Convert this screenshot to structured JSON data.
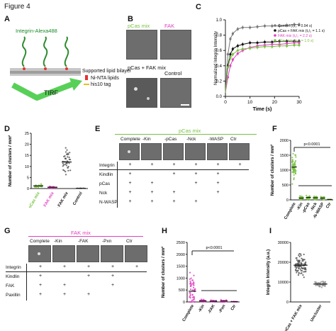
{
  "figure_title": "Figure 4",
  "colors": {
    "green": "#7ac143",
    "magenta": "#e040c0",
    "gray": "#777777",
    "black": "#111111"
  },
  "panelA": {
    "letter": "A",
    "integrin_label": "Integrin-Alexa488",
    "bilayer": "Supported lipid bilayer",
    "nta": "Ni-NTA lipids",
    "his": "his10 tag",
    "tirf": "TIRF"
  },
  "panelB": {
    "letter": "B",
    "img1": "pCas mix",
    "img2": "FAK",
    "img3": "pCas + FAK mix",
    "img4": "Control"
  },
  "panelC": {
    "letter": "C",
    "ylabel": "Normalized Integrin Intensity",
    "xlabel": "Time (s)",
    "legend": [
      "Control (t₁/₂ = 0.94 s)",
      "pCas + FAK mix (t₁/₂ = 1.1 s)",
      "FAK mix (t₁/₂ = 2.2 s)",
      "pCas mix (t₁/₂ = 1.0 s)"
    ],
    "xticks": [
      "0",
      "10",
      "20",
      "30"
    ],
    "yticks": [
      "0.0",
      "0.2",
      "0.4",
      "0.6",
      "0.8",
      "1.0"
    ]
  },
  "panelD": {
    "letter": "D",
    "ylabel": "Number of clusters / mm²",
    "yticks": [
      "0",
      "5",
      "10",
      "15",
      "20",
      "25"
    ],
    "categories": [
      "pCas mix",
      "FAK mix",
      "pCas + FAK mix",
      "Control"
    ]
  },
  "panelE": {
    "letter": "E",
    "title": "pCas mix",
    "cols": [
      "Complete",
      "-Kin",
      "-pCas",
      "-Nck",
      "-WASP",
      "Ctr"
    ],
    "rows": [
      "Integrin",
      "Kindlin",
      "pCas",
      "Nck",
      "N-WASP"
    ],
    "cells": [
      [
        "+",
        "+",
        "+",
        "+",
        "+",
        "+"
      ],
      [
        "+",
        "",
        "+",
        "+",
        "+",
        ""
      ],
      [
        "+",
        "+",
        "",
        "+",
        "+",
        ""
      ],
      [
        "+",
        "+",
        "+",
        "",
        "+",
        ""
      ],
      [
        "+",
        "+",
        "+",
        "+",
        "",
        ""
      ]
    ]
  },
  "panelF": {
    "letter": "F",
    "ylabel": "Number of clusters / mm²",
    "pvalue": "p<0.0001",
    "yticks": [
      "0",
      "500",
      "1000",
      "1500",
      "2000"
    ],
    "categories": [
      "Complete",
      "-Kin",
      "-pCas",
      "-Nck",
      "-N-WASP",
      "Ctr"
    ]
  },
  "panelG": {
    "letter": "G",
    "title": "FAK mix",
    "cols": [
      "Complete",
      "-Kin",
      "-FAK",
      "-Pxn",
      "Ctr"
    ],
    "rows": [
      "Integrin",
      "Kindlin",
      "FAK",
      "Paxillin"
    ],
    "cells": [
      [
        "+",
        "+",
        "+",
        "+",
        "+"
      ],
      [
        "+",
        "",
        "+",
        "+",
        ""
      ],
      [
        "+",
        "+",
        "",
        "+",
        ""
      ],
      [
        "+",
        "+",
        "+",
        "",
        ""
      ]
    ]
  },
  "panelH": {
    "letter": "H",
    "ylabel": "Number of clusters / mm²",
    "pvalue": "p<0.0001",
    "yticks": [
      "0",
      "500",
      "1000",
      "1500",
      "2000",
      "2500"
    ],
    "categories": [
      "Complete",
      "-Kin",
      "-FAK",
      "-Pxn",
      "Ctr"
    ]
  },
  "panelI": {
    "letter": "I",
    "ylabel": "Integrin Intensity (a.u.)",
    "yticks": [
      "0",
      "10000",
      "20000",
      "30000"
    ],
    "categories": [
      "pCas + FAK mix",
      "Uncluster"
    ]
  },
  "chart_data": [
    {
      "type": "line",
      "panel": "C",
      "xlabel": "Time (s)",
      "ylabel": "Normalized Integrin Intensity",
      "xlim": [
        0,
        30
      ],
      "ylim": [
        0,
        1.0
      ],
      "series": [
        {
          "name": "Control (t₁/₂ = 0.94 s)",
          "color": "#777777",
          "x": [
            0,
            1,
            2,
            3,
            5,
            7,
            10,
            13,
            16,
            19,
            22,
            25,
            28,
            30
          ],
          "y": [
            0.05,
            0.55,
            0.75,
            0.82,
            0.88,
            0.9,
            0.9,
            0.91,
            0.92,
            0.92,
            0.92,
            0.93,
            0.94,
            0.94
          ]
        },
        {
          "name": "pCas + FAK mix (t₁/₂ = 1.1 s)",
          "color": "#111111",
          "x": [
            0,
            1,
            2,
            3,
            5,
            7,
            10,
            13,
            16,
            19,
            22,
            25,
            28,
            30
          ],
          "y": [
            0.05,
            0.4,
            0.55,
            0.62,
            0.66,
            0.68,
            0.7,
            0.7,
            0.71,
            0.71,
            0.72,
            0.72,
            0.72,
            0.72
          ]
        },
        {
          "name": "FAK mix (t₁/₂ = 2.2 s)",
          "color": "#e040c0",
          "x": [
            0,
            1,
            2,
            3,
            5,
            7,
            10,
            13,
            16,
            19,
            22,
            25,
            28,
            30
          ],
          "y": [
            0.05,
            0.25,
            0.4,
            0.48,
            0.56,
            0.6,
            0.64,
            0.66,
            0.67,
            0.68,
            0.68,
            0.69,
            0.7,
            0.7
          ]
        },
        {
          "name": "pCas mix (t₁/₂ = 1.0 s)",
          "color": "#7ac143",
          "x": [
            0,
            1,
            2,
            3,
            5,
            7,
            10,
            13,
            16,
            19,
            22,
            25,
            28,
            30
          ],
          "y": [
            0.05,
            0.38,
            0.5,
            0.55,
            0.6,
            0.62,
            0.63,
            0.64,
            0.65,
            0.65,
            0.66,
            0.66,
            0.67,
            0.67
          ]
        }
      ]
    },
    {
      "type": "scatter",
      "panel": "D",
      "ylabel": "Number of clusters / mm²",
      "ylim": [
        0,
        25
      ],
      "categories": [
        "pCas mix",
        "FAK mix",
        "pCas + FAK mix",
        "Control"
      ],
      "means": [
        1.2,
        0.6,
        12.0,
        0.1
      ]
    },
    {
      "type": "scatter",
      "panel": "F",
      "ylabel": "Number of clusters / mm²",
      "ylim": [
        0,
        2000
      ],
      "categories": [
        "Complete",
        "-Kin",
        "-pCas",
        "-Nck",
        "-N-WASP",
        "Ctr"
      ],
      "means": [
        1100,
        60,
        80,
        70,
        60,
        10
      ]
    },
    {
      "type": "scatter",
      "panel": "H",
      "ylabel": "Number of clusters / mm²",
      "ylim": [
        0,
        2500
      ],
      "categories": [
        "Complete",
        "-Kin",
        "-FAK",
        "-Pxn",
        "Ctr"
      ],
      "means": [
        450,
        40,
        30,
        40,
        10
      ]
    },
    {
      "type": "scatter",
      "panel": "I",
      "ylabel": "Integrin Intensity (a.u.)",
      "ylim": [
        0,
        30000
      ],
      "categories": [
        "pCas + FAK mix",
        "Uncluster"
      ],
      "means": [
        18500,
        9000
      ]
    }
  ]
}
